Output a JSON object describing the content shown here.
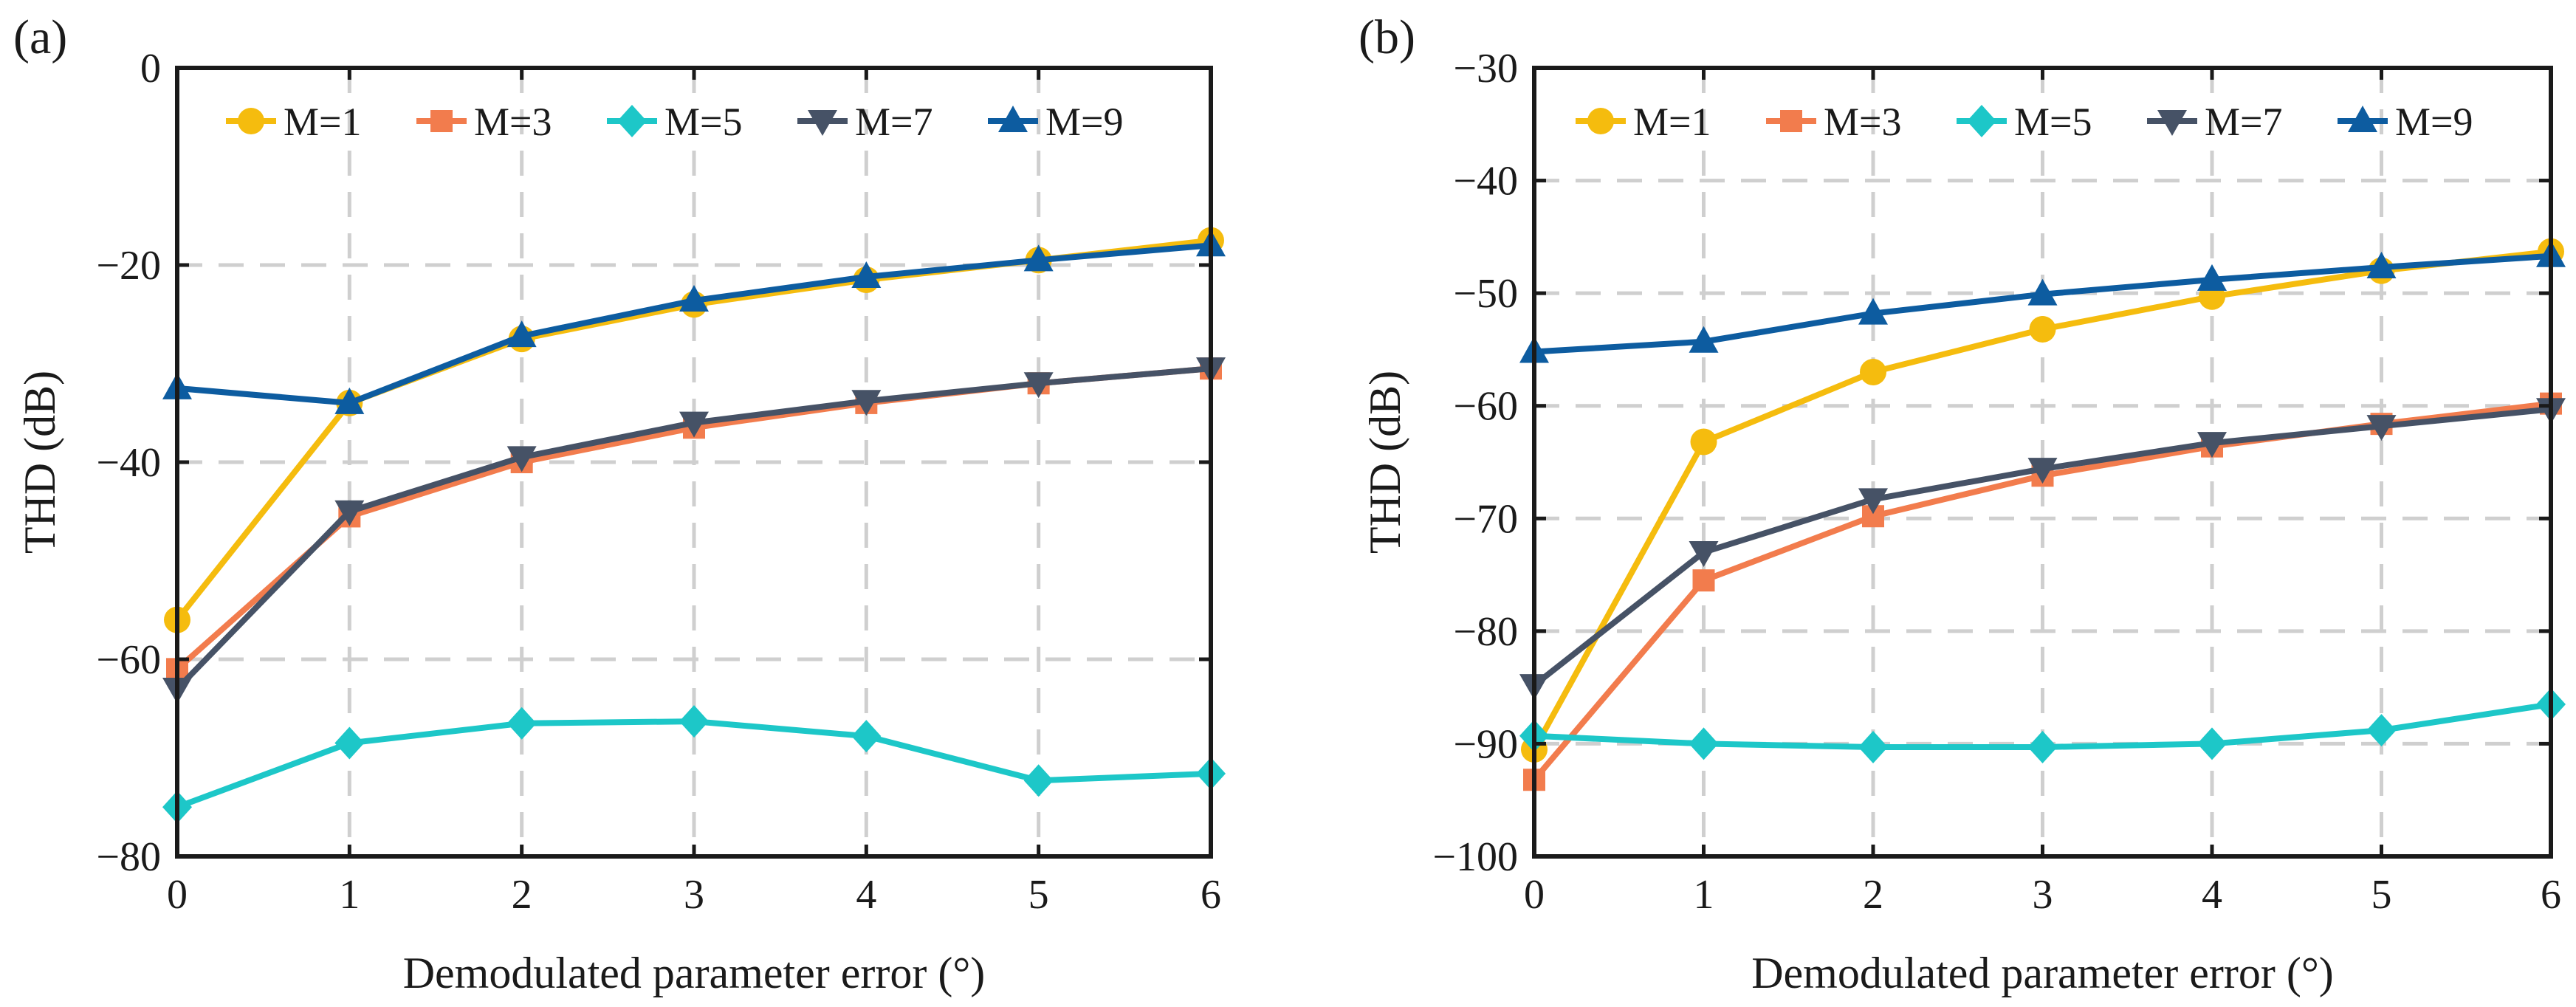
{
  "chart_data": [
    {
      "type": "line",
      "panel_label": "(a)",
      "xlabel": "Demodulated parameter error (°)",
      "ylabel": "THD (dB)",
      "xlim": [
        0,
        6
      ],
      "ylim": [
        -80,
        0
      ],
      "xticks": [
        0,
        1,
        2,
        3,
        4,
        5,
        6
      ],
      "yticks": [
        0,
        -20,
        -40,
        -60,
        -80
      ],
      "ytick_labels": [
        "0",
        "−20",
        "−40",
        "−60",
        "−80"
      ],
      "grid": true,
      "legend_position": "top",
      "x": [
        0,
        1,
        2,
        3,
        4,
        5,
        6
      ],
      "series": [
        {
          "name": "M=1",
          "color": "#F5BC0E",
          "marker": "circle",
          "values": [
            -56,
            -34,
            -27.5,
            -24,
            -21.5,
            -19.5,
            -17.5
          ]
        },
        {
          "name": "M=3",
          "color": "#F27C4D",
          "marker": "square",
          "values": [
            -61,
            -45.5,
            -40,
            -36.5,
            -34,
            -32,
            -30.5
          ]
        },
        {
          "name": "M=5",
          "color": "#1DC7C8",
          "marker": "diamond",
          "values": [
            -75,
            -68.5,
            -66.5,
            -66.3,
            -67.8,
            -72.3,
            -71.6
          ]
        },
        {
          "name": "M=7",
          "color": "#465266",
          "marker": "tri-down",
          "values": [
            -63,
            -45,
            -39.5,
            -36,
            -33.8,
            -32,
            -30.5
          ]
        },
        {
          "name": "M=9",
          "color": "#0D5CA0",
          "marker": "tri-up",
          "values": [
            -32.5,
            -34,
            -27.2,
            -23.6,
            -21.2,
            -19.5,
            -18
          ]
        }
      ]
    },
    {
      "type": "line",
      "panel_label": "(b)",
      "xlabel": "Demodulated parameter error (°)",
      "ylabel": "THD (dB)",
      "xlim": [
        0,
        6
      ],
      "ylim": [
        -100,
        -30
      ],
      "xticks": [
        0,
        1,
        2,
        3,
        4,
        5,
        6
      ],
      "yticks": [
        -30,
        -40,
        -50,
        -60,
        -70,
        -80,
        -90,
        -100
      ],
      "ytick_labels": [
        "−30",
        "−40",
        "−50",
        "−60",
        "−70",
        "−80",
        "−90",
        "−100"
      ],
      "grid": true,
      "legend_position": "top",
      "x": [
        0,
        1,
        2,
        3,
        4,
        5,
        6
      ],
      "series": [
        {
          "name": "M=1",
          "color": "#F5BC0E",
          "marker": "circle",
          "values": [
            -90.5,
            -63.2,
            -57,
            -53.2,
            -50.3,
            -48,
            -46.3
          ]
        },
        {
          "name": "M=3",
          "color": "#F27C4D",
          "marker": "square",
          "values": [
            -93.2,
            -75.5,
            -69.8,
            -66.2,
            -63.6,
            -61.6,
            -59.8
          ]
        },
        {
          "name": "M=5",
          "color": "#1DC7C8",
          "marker": "diamond",
          "values": [
            -89.3,
            -90,
            -90.3,
            -90.3,
            -90,
            -88.8,
            -86.5
          ]
        },
        {
          "name": "M=7",
          "color": "#465266",
          "marker": "tri-down",
          "values": [
            -84.8,
            -73,
            -68.3,
            -65.6,
            -63.3,
            -61.8,
            -60.3
          ]
        },
        {
          "name": "M=9",
          "color": "#0D5CA0",
          "marker": "tri-up",
          "values": [
            -55.2,
            -54.3,
            -51.8,
            -50.1,
            -48.8,
            -47.7,
            -46.7
          ]
        }
      ]
    }
  ]
}
